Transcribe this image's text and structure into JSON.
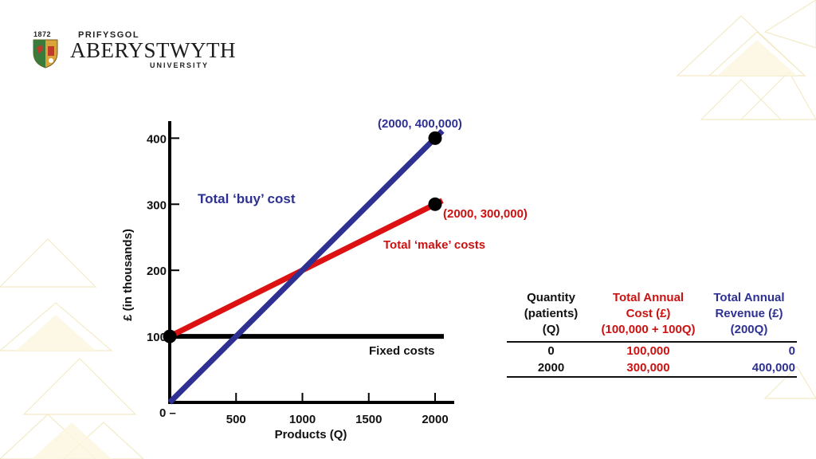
{
  "logo": {
    "year": "1872",
    "line1": "PRIFYSGOL",
    "line2": "ABERYSTWYTH",
    "line3": "UNIVERSITY"
  },
  "chart_data": {
    "type": "line",
    "ylabel": "£ (in thousands)",
    "xlabel": "Products (Q)",
    "xlim": [
      0,
      2000
    ],
    "ylim": [
      0,
      440
    ],
    "x_ticks": [
      "500",
      "1000",
      "1500",
      "2000"
    ],
    "y_ticks": [
      "100",
      "200",
      "300",
      "400"
    ],
    "zero_label": "0 –",
    "series": [
      {
        "name": "Total ‘buy’ cost",
        "color": "#2e3192",
        "x": [
          0,
          2000
        ],
        "y": [
          0,
          400
        ]
      },
      {
        "name": "Total ‘make’ costs",
        "color": "#dd1111",
        "x": [
          0,
          2000
        ],
        "y": [
          100,
          300
        ]
      },
      {
        "name": "Fixed costs",
        "color": "#000000",
        "x": [
          0,
          2000
        ],
        "y": [
          100,
          100
        ]
      }
    ],
    "points": [
      {
        "x": 0,
        "y": 100
      },
      {
        "x": 2000,
        "y": 400,
        "label": "(2000, 400,000)",
        "color": "#2e3192"
      },
      {
        "x": 2000,
        "y": 300,
        "label": "(2000, 300,000)",
        "color": "#cc1111"
      }
    ]
  },
  "table": {
    "headers": [
      {
        "lines": [
          "Quantity",
          "(patients)",
          "(Q)"
        ],
        "color": "#111111"
      },
      {
        "lines": [
          "Total Annual",
          "Cost (£)",
          "(100,000 + 100Q)"
        ],
        "color": "#cc1111"
      },
      {
        "lines": [
          "Total Annual",
          "Revenue (£)",
          "(200Q)"
        ],
        "color": "#2e3192"
      }
    ],
    "rows": [
      [
        "0",
        "100,000",
        "0"
      ],
      [
        "2000",
        "300,000",
        "400,000"
      ]
    ]
  }
}
